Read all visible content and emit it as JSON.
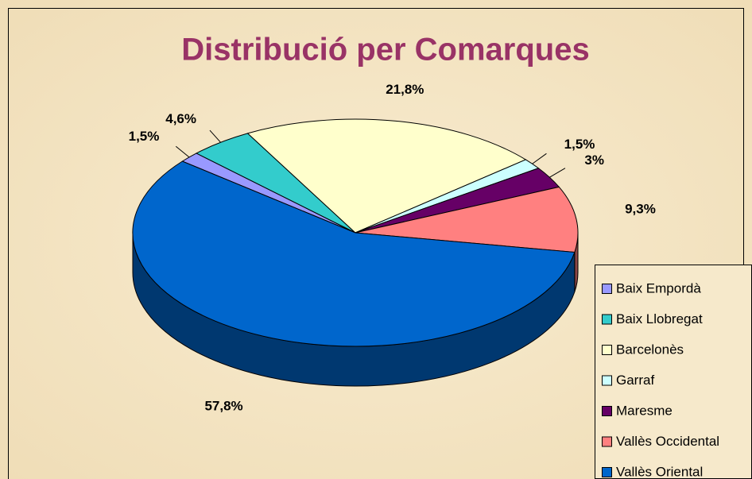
{
  "chart_data": {
    "type": "pie",
    "title": "Distribució per Comarques",
    "categories": [
      "Baix Empordà",
      "Baix Llobregat",
      "Barcelonès",
      "Garraf",
      "Maresme",
      "Vallès Occidental",
      "Vallès Oriental"
    ],
    "values": [
      1.5,
      4.6,
      21.8,
      1.5,
      3,
      9.3,
      57.8
    ],
    "value_labels": [
      "1,5%",
      "4,6%",
      "21,8%",
      "1,5%",
      "3%",
      "9,3%",
      "57,8%"
    ],
    "colors": [
      "#9999ff",
      "#33cccc",
      "#ffffcc",
      "#ccffff",
      "#660066",
      "#ff8080",
      "#0066cc"
    ],
    "legend": "right"
  }
}
